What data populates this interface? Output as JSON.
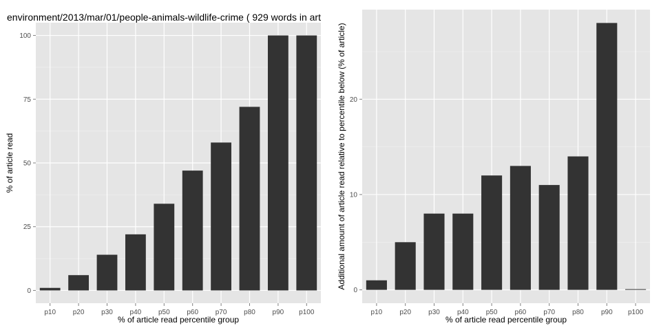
{
  "chart_data": [
    {
      "type": "bar",
      "title": "environment/2013/mar/01/people-animals-wildlife-crime ( 929 words in art",
      "xlabel": "% of article read percentile group",
      "ylabel": "% of article read",
      "categories": [
        "p10",
        "p20",
        "p30",
        "p40",
        "p50",
        "p60",
        "p70",
        "p80",
        "p90",
        "p100"
      ],
      "values": [
        1,
        6,
        14,
        22,
        34,
        47,
        58,
        72,
        100,
        100
      ],
      "ylim": [
        -5,
        105
      ],
      "yticks": [
        0,
        25,
        50,
        75,
        100
      ],
      "ytick_labels": [
        "0",
        "25",
        "50",
        "75",
        "100"
      ],
      "grid": true,
      "bar_color": "#333333",
      "panel_color": "#e5e5e5"
    },
    {
      "type": "bar",
      "title": "",
      "xlabel": "% of article read percentile group",
      "ylabel": "Additional amount of article read relative to percentile below (% of article)",
      "categories": [
        "p10",
        "p20",
        "p30",
        "p40",
        "p50",
        "p60",
        "p70",
        "p80",
        "p90",
        "p100"
      ],
      "values": [
        1,
        5,
        8,
        8,
        12,
        13,
        11,
        14,
        28,
        0
      ],
      "ylim": [
        -1.4,
        29.4
      ],
      "yticks": [
        0,
        10,
        20
      ],
      "ytick_labels": [
        "0",
        "10",
        "20"
      ],
      "grid": true,
      "bar_color": "#333333",
      "panel_color": "#e5e5e5"
    }
  ]
}
